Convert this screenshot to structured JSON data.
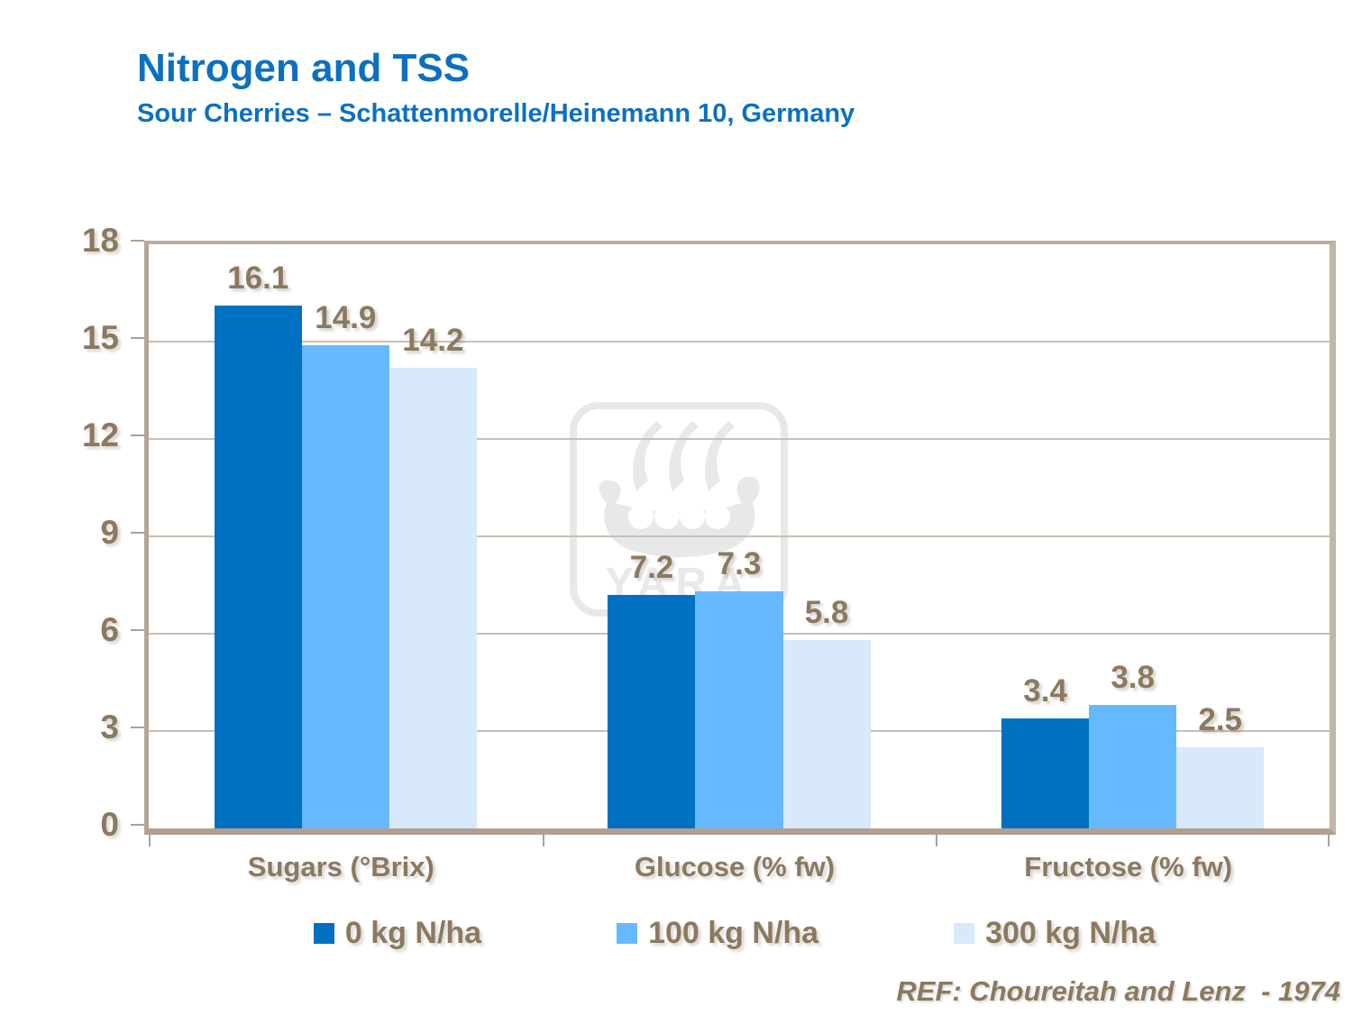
{
  "header": {
    "title": "Nitrogen and TSS",
    "subtitle": "Sour Cherries – Schattenmorelle/Heinemann 10, Germany"
  },
  "chart_data": {
    "type": "bar",
    "title": "Nitrogen and TSS",
    "subtitle": "Sour Cherries – Schattenmorelle/Heinemann 10, Germany",
    "categories": [
      "Sugars (°Brix)",
      "Glucose (% fw)",
      "Fructose (% fw)"
    ],
    "series": [
      {
        "name": "0 kg N/ha",
        "color": "#0070C0",
        "values": [
          16.1,
          7.2,
          3.4
        ]
      },
      {
        "name": "100 kg N/ha",
        "color": "#66B9FF",
        "values": [
          14.9,
          7.3,
          3.8
        ]
      },
      {
        "name": "300 kg N/ha",
        "color": "#D7E9FB",
        "values": [
          14.2,
          5.8,
          2.5
        ]
      }
    ],
    "ylim": [
      0,
      18
    ],
    "yticks": [
      0,
      3,
      6,
      9,
      12,
      15,
      18
    ],
    "grid": true,
    "legend_position": "bottom",
    "value_labels": true
  },
  "watermark": {
    "text": "YARA"
  },
  "footer": {
    "reference": "REF: Choureitah and Lenz  - 1974"
  },
  "colors": {
    "title_blue": "#0C70C0",
    "label_brown": "#8B7960",
    "axis": "#B1A090",
    "gridline": "#CBBFB1",
    "watermark_gray": "#E8E8E8"
  }
}
